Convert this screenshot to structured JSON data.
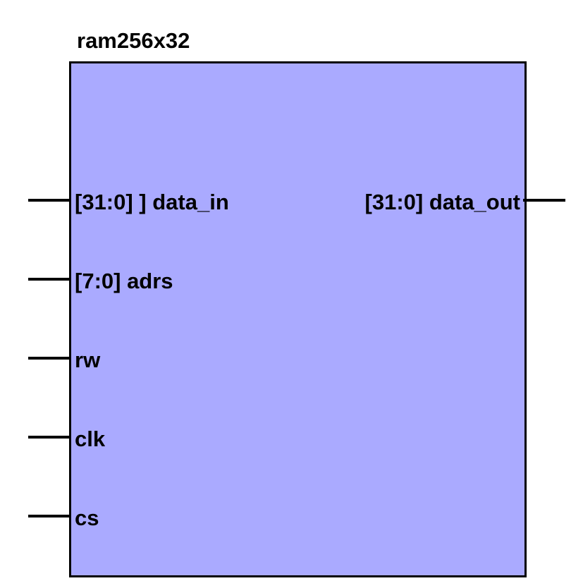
{
  "block": {
    "name": "ram256x32",
    "fill_color": "#aaaaff",
    "border_color": "#000000"
  },
  "ports": {
    "inputs": [
      {
        "label": "[31:0] ] data_in"
      },
      {
        "label": "[7:0] adrs"
      },
      {
        "label": "rw"
      },
      {
        "label": "clk"
      },
      {
        "label": "cs"
      }
    ],
    "outputs": [
      {
        "label": "[31:0] data_out"
      }
    ]
  }
}
